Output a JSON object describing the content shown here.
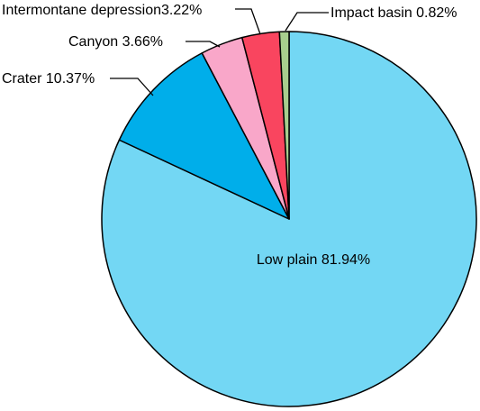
{
  "chart_data": {
    "type": "pie",
    "start_angle_deg": 0,
    "direction": "clockwise",
    "slices": [
      {
        "label": "Low plain",
        "value": 81.94,
        "display": "Low plain 81.94%",
        "color": "#73D7F4"
      },
      {
        "label": "Crater",
        "value": 10.37,
        "display": "Crater 10.37%",
        "color": "#00AEEA"
      },
      {
        "label": "Canyon",
        "value": 3.66,
        "display": "Canyon 3.66%",
        "color": "#F9A7C9"
      },
      {
        "label": "Intermontane depression",
        "value": 3.22,
        "display": "Intermontane depression3.22%",
        "color": "#F9455F"
      },
      {
        "label": "Impact basin",
        "value": 0.82,
        "display": "Impact basin 0.82%",
        "color": "#A8CE8E"
      }
    ]
  }
}
